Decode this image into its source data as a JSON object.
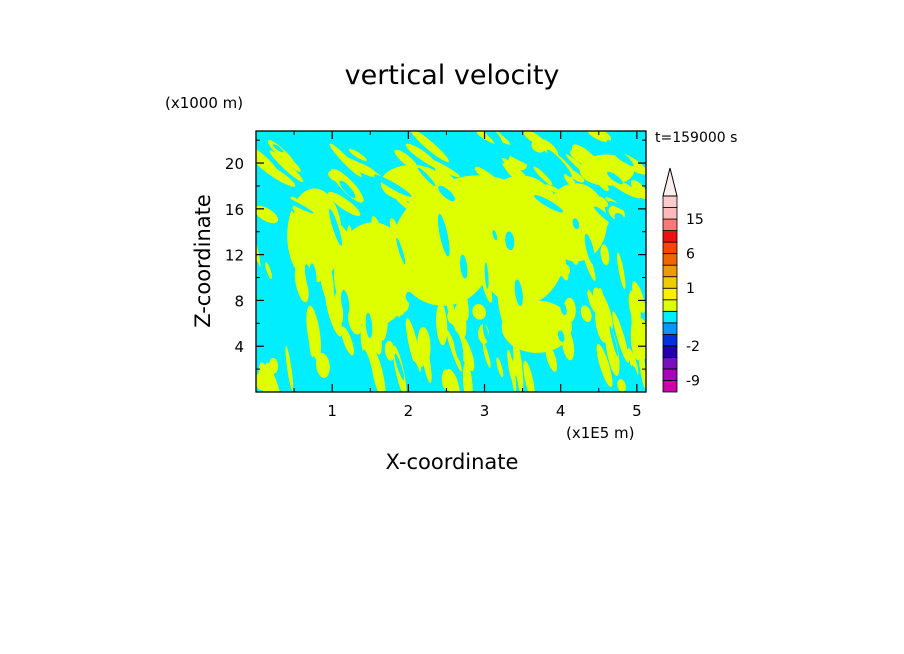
{
  "chart_data": {
    "type": "heatmap",
    "title": "vertical velocity",
    "xlabel": "X-coordinate",
    "ylabel": "Z-coordinate",
    "x_unit": "(x1E5 m)",
    "y_unit": "(x1000 m)",
    "time_label": "t=159000 s",
    "x_ticks": [
      "1",
      "2",
      "3",
      "4",
      "5"
    ],
    "y_ticks": [
      "4",
      "8",
      "12",
      "16",
      "20"
    ],
    "x_tick_values": [
      1,
      2,
      3,
      4,
      5
    ],
    "y_tick_values": [
      4,
      8,
      12,
      16,
      20
    ],
    "xlim": [
      0,
      5.12
    ],
    "ylim": [
      0,
      22.8
    ],
    "colorbar": {
      "labels": [
        "15",
        "6",
        "1",
        "-2",
        "-9"
      ],
      "label_values": [
        15,
        6,
        1,
        -2,
        -9
      ],
      "levels": [
        -12,
        -9,
        -6,
        -4,
        -2,
        -1,
        -0.5,
        0,
        0.5,
        1,
        2,
        4,
        6,
        9,
        12,
        15,
        20
      ],
      "colors": [
        "#cc00aa",
        "#aa00bb",
        "#7711bb",
        "#2200aa",
        "#0033dd",
        "#0099ff",
        "#00eeff",
        "#ddff00",
        "#ffee00",
        "#eecc00",
        "#ee9900",
        "#ee6600",
        "#ff4400",
        "#ee1111",
        "#ff7777",
        "#ffbbbb",
        "#ffcccc"
      ]
    },
    "dominant_fields": {
      "negative_color": "#00eeff",
      "positive_color": "#ddff00"
    }
  }
}
